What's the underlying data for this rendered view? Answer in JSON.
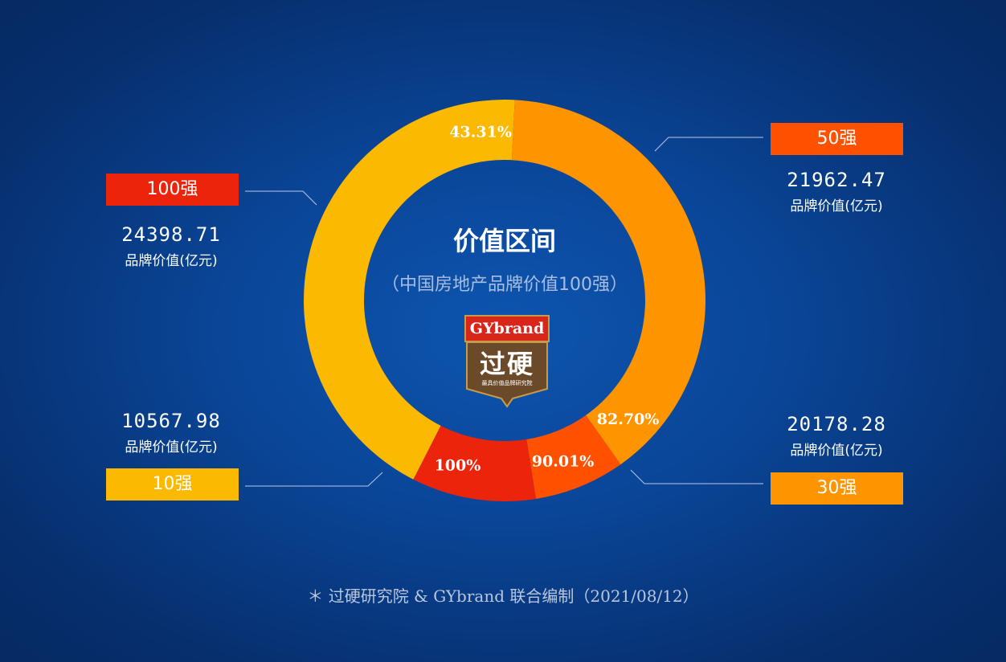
{
  "chart_data": {
    "type": "pie",
    "title": "价值区间",
    "subtitle": "（中国房地产品牌价值100强）",
    "unit": "品牌价值(亿元)",
    "segments": [
      {
        "tag": "10强",
        "value": 10567.98,
        "value_text": "10567.98",
        "cumulative_pct": 43.31,
        "pct_label": "43.31%",
        "color": "#fbb902"
      },
      {
        "tag": "30强",
        "value": 20178.28,
        "value_text": "20178.28",
        "cumulative_pct": 82.7,
        "pct_label": "82.70%",
        "color": "#fe9400"
      },
      {
        "tag": "50强",
        "value": 21962.47,
        "value_text": "21962.47",
        "cumulative_pct": 90.01,
        "pct_label": "90.01%",
        "color": "#ff5100"
      },
      {
        "tag": "100强",
        "value": 24398.71,
        "value_text": "24398.71",
        "cumulative_pct": 100,
        "pct_label": "100%",
        "color": "#ec240b"
      }
    ]
  },
  "logo": {
    "top_text": "GYbrand",
    "big_text": "过硬",
    "small_text": "最具价值品牌研究院",
    "colors": {
      "red": "#d8261b",
      "gold": "#c79a4a",
      "brown": "#6b4a2a"
    }
  },
  "footer": "＊ 过硬研究院 & GYbrand 联合编制（2021/08/12）"
}
